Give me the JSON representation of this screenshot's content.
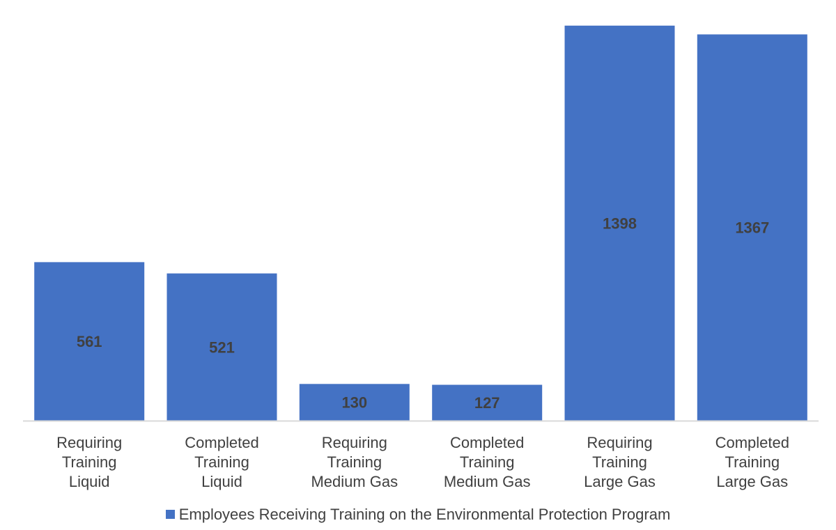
{
  "chart_data": {
    "type": "bar",
    "categories": [
      [
        "Requiring",
        "Training",
        "Liquid"
      ],
      [
        "Completed",
        "Training",
        "Liquid"
      ],
      [
        "Requiring",
        "Training",
        "Medium Gas"
      ],
      [
        "Completed",
        "Training",
        "Medium Gas"
      ],
      [
        "Requiring",
        "Training",
        "Large Gas"
      ],
      [
        "Completed",
        "Training",
        "Large Gas"
      ]
    ],
    "series": [
      {
        "name": "Employees Receiving Training on the Environmental Protection Program",
        "values": [
          561,
          521,
          130,
          127,
          1398,
          1367
        ]
      }
    ],
    "data_labels": [
      "561",
      "521",
      "130",
      "127",
      "1398",
      "1367"
    ],
    "title": "",
    "xlabel": "",
    "ylabel": "",
    "ylim": [
      0,
      1400
    ],
    "grid": false,
    "legend": "bottom",
    "bar_color": "#4472C4",
    "axis_color": "#D9D9D9",
    "text_color": "#404040"
  }
}
